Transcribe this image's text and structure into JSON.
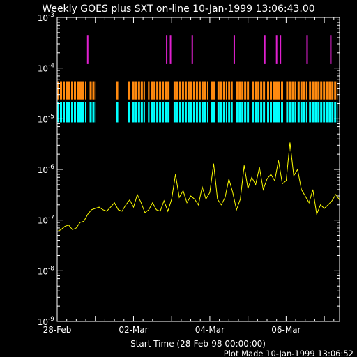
{
  "header": {
    "title": "Weekly GOES plus SXT on-line 10-Jan-1999 13:06:43.00"
  },
  "footer": {
    "xlabel": "Start Time (28-Feb-98 00:00:00)",
    "plot_made": "Plot Made 10-Jan-1999 13:06:52"
  },
  "colors": {
    "background": "#000000",
    "axes": "#ffffff",
    "flare_markers": "#e020d0",
    "sxt_upper": "#ff8a10",
    "sxt_lower": "#00ffff",
    "goes_flux": "#ffff00"
  },
  "chart_data": {
    "type": "line",
    "title": "Weekly GOES plus SXT on-line 10-Jan-1999 13:06:43.00",
    "xlabel": "Start Time (28-Feb-98 00:00:00)",
    "ylabel": "",
    "y_scale": "log",
    "ylim": [
      1e-09,
      0.001
    ],
    "xlim_days": [
      0,
      7.4
    ],
    "x_ticks": [
      {
        "label": "28-Feb",
        "day": 0
      },
      {
        "label": "02-Mar",
        "day": 2
      },
      {
        "label": "04-Mar",
        "day": 4
      },
      {
        "label": "06-Mar",
        "day": 6
      }
    ],
    "y_ticks": [
      {
        "base": "10",
        "exp": "-9",
        "value": 1e-09
      },
      {
        "base": "10",
        "exp": "-8",
        "value": 1e-08
      },
      {
        "base": "10",
        "exp": "-7",
        "value": 1e-07
      },
      {
        "base": "10",
        "exp": "-6",
        "value": 1e-06
      },
      {
        "base": "10",
        "exp": "-5",
        "value": 1e-05
      },
      {
        "base": "10",
        "exp": "-4",
        "value": 0.0001
      },
      {
        "base": "10",
        "exp": "-3",
        "value": 0.001
      }
    ],
    "flare_markers_days": [
      0.8,
      2.87,
      2.97,
      3.54,
      4.64,
      5.44,
      5.75,
      5.85,
      6.55,
      7.17
    ],
    "flare_marker_yrange": [
      0.00012,
      0.00045
    ],
    "sxt_upper_band_yrange": [
      2.4e-05,
      5.5e-05
    ],
    "sxt_lower_band_yrange": [
      8.5e-06,
      2.1e-05
    ],
    "sxt_coverage_days": [
      [
        0.0,
        0.75
      ],
      [
        0.85,
        1.0
      ],
      [
        1.55,
        1.6
      ],
      [
        1.85,
        1.9
      ],
      [
        1.97,
        2.3
      ],
      [
        2.38,
        2.42
      ],
      [
        2.45,
        2.95
      ],
      [
        3.05,
        3.95
      ],
      [
        4.02,
        4.15
      ],
      [
        4.2,
        4.45
      ],
      [
        4.48,
        4.6
      ],
      [
        4.68,
        5.05
      ],
      [
        5.1,
        5.45
      ],
      [
        5.5,
        5.95
      ],
      [
        6.0,
        6.25
      ],
      [
        6.3,
        6.55
      ],
      [
        6.6,
        7.35
      ]
    ],
    "series": [
      {
        "x": [
          0.0,
          0.1,
          0.2,
          0.3,
          0.4,
          0.5,
          0.6,
          0.7,
          0.8,
          0.9,
          1.0,
          1.1,
          1.2,
          1.3,
          1.4,
          1.5,
          1.6,
          1.7,
          1.8,
          1.9,
          2.0,
          2.1,
          2.2,
          2.3,
          2.4,
          2.5,
          2.6,
          2.7,
          2.8,
          2.9,
          3.0,
          3.1,
          3.2,
          3.3,
          3.4,
          3.5,
          3.6,
          3.7,
          3.8,
          3.9,
          4.0,
          4.1,
          4.2,
          4.3,
          4.4,
          4.5,
          4.6,
          4.7,
          4.8,
          4.9,
          5.0,
          5.1,
          5.2,
          5.3,
          5.4,
          5.5,
          5.6,
          5.7,
          5.8,
          5.9,
          6.0,
          6.1,
          6.2,
          6.3,
          6.4,
          6.5,
          6.6,
          6.7,
          6.8,
          6.9,
          7.0,
          7.1,
          7.2,
          7.3,
          7.4
        ],
        "values": [
          6e-08,
          6.5e-08,
          7.5e-08,
          8e-08,
          6.5e-08,
          7e-08,
          9e-08,
          9.5e-08,
          1.3e-07,
          1.6e-07,
          1.7e-07,
          1.8e-07,
          1.6e-07,
          1.5e-07,
          1.8e-07,
          2.2e-07,
          1.6e-07,
          1.5e-07,
          2e-07,
          2.5e-07,
          1.8e-07,
          3.2e-07,
          2.2e-07,
          1.4e-07,
          1.6e-07,
          2.2e-07,
          1.6e-07,
          1.5e-07,
          2.4e-07,
          1.5e-07,
          2.6e-07,
          8e-07,
          2.8e-07,
          3.8e-07,
          2.2e-07,
          3e-07,
          2.6e-07,
          2e-07,
          4.5e-07,
          2.6e-07,
          3.5e-07,
          1.3e-06,
          2.6e-07,
          2e-07,
          2.8e-07,
          6.5e-07,
          3.5e-07,
          1.6e-07,
          2.6e-07,
          1.2e-06,
          4.2e-07,
          7e-07,
          5e-07,
          1.1e-06,
          4e-07,
          6.5e-07,
          8e-07,
          6e-07,
          1.5e-06,
          5.2e-07,
          6e-07,
          3.4e-06,
          7.5e-07,
          1e-06,
          4e-07,
          3e-07,
          2.2e-07,
          4e-07,
          1.3e-07,
          2e-07,
          1.7e-07,
          2e-07,
          2.4e-07,
          3.2e-07,
          2.5e-07
        ]
      }
    ]
  }
}
